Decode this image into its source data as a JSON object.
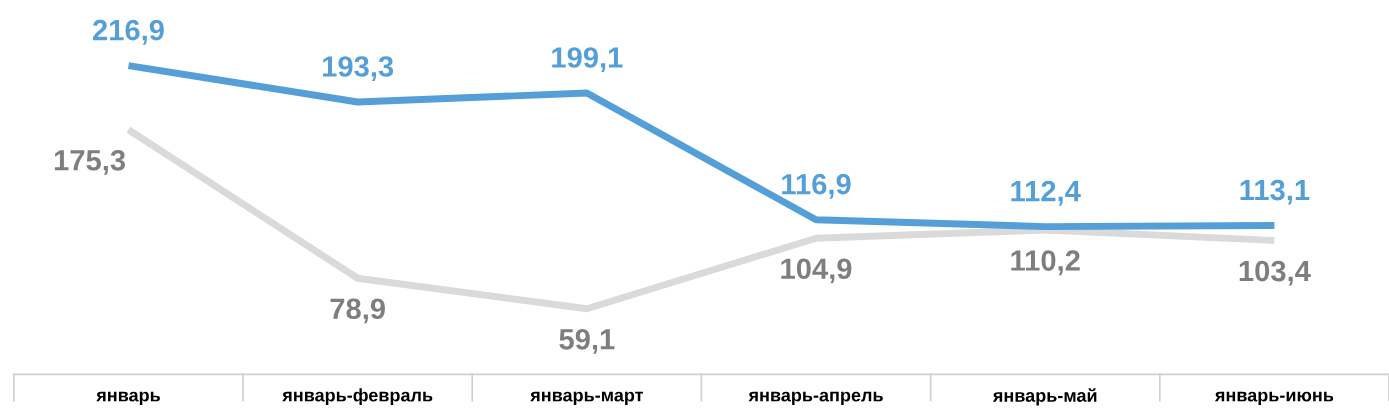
{
  "chart_data": {
    "type": "line",
    "categories": [
      "январь",
      "январь-февраль",
      "январь-март",
      "январь-апрель",
      "январь-май",
      "январь-июнь"
    ],
    "series": [
      {
        "color": "#559fd8",
        "values": [
          216.9,
          193.3,
          199.1,
          116.9,
          112.4,
          113.1
        ],
        "value_labels": [
          "216,9",
          "193,3",
          "199,1",
          "116,9",
          "112,4",
          "113,1"
        ]
      },
      {
        "color": "#dadada",
        "values": [
          175.3,
          78.9,
          59.1,
          104.9,
          110.2,
          103.4
        ],
        "value_labels": [
          "175,3",
          "78,9",
          "59,1",
          "104,9",
          "110,2",
          "103,4"
        ]
      }
    ],
    "tick_labels": "x",
    "marker": "none",
    "line_style": "solid"
  }
}
